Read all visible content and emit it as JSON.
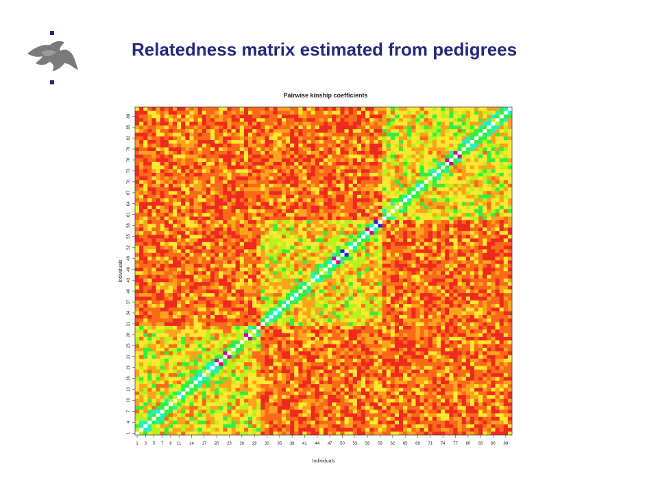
{
  "slide": {
    "title": "Relatedness matrix estimated from pedigrees",
    "logo_icon": "university-flame-logo-icon",
    "title_color": "#24287a"
  },
  "chart_data": {
    "type": "heatmap",
    "title": "Pairwise kinship coefficients",
    "xlabel": "Individuals",
    "ylabel": "Individuals",
    "n": 90,
    "x_ticks": [
      1,
      3,
      5,
      7,
      9,
      11,
      14,
      17,
      20,
      23,
      26,
      29,
      32,
      35,
      38,
      41,
      44,
      47,
      50,
      53,
      56,
      59,
      62,
      65,
      68,
      71,
      74,
      77,
      80,
      83,
      86,
      89
    ],
    "y_ticks": [
      1,
      4,
      7,
      10,
      13,
      16,
      19,
      22,
      25,
      28,
      31,
      34,
      37,
      40,
      43,
      46,
      49,
      52,
      55,
      58,
      61,
      64,
      67,
      70,
      73,
      76,
      79,
      82,
      85,
      88
    ],
    "diagonal_color": "#ffffff",
    "blocks": [
      {
        "start": 1,
        "end": 30
      },
      {
        "start": 31,
        "end": 59
      },
      {
        "start": 60,
        "end": 90
      }
    ],
    "color_scale": [
      {
        "level": "lowest",
        "color": "#ee2a1e"
      },
      {
        "level": "low",
        "color": "#fa6a18"
      },
      {
        "level": "medium-low",
        "color": "#ffa21c"
      },
      {
        "level": "medium",
        "color": "#ffe82e"
      },
      {
        "level": "medium-high",
        "color": "#b8f21a"
      },
      {
        "level": "high",
        "color": "#33ee40"
      },
      {
        "level": "higher",
        "color": "#22f0c0"
      },
      {
        "level": "very-high",
        "color": "#c8108a"
      },
      {
        "level": "highest",
        "color": "#1a2bd0"
      }
    ]
  }
}
